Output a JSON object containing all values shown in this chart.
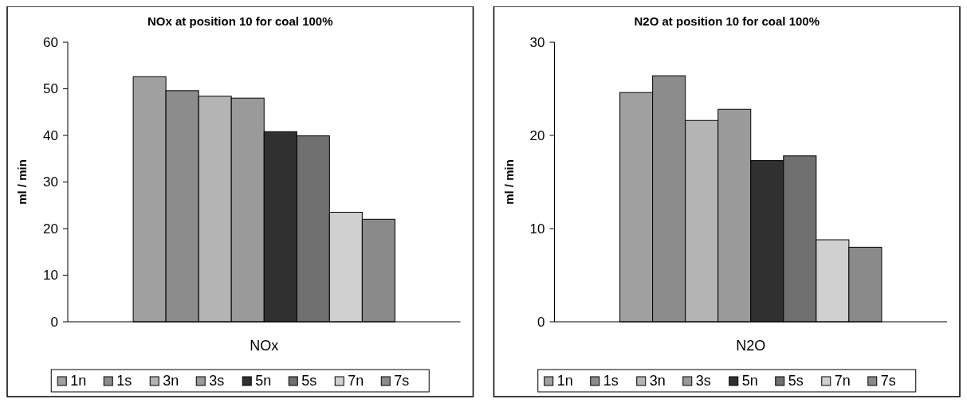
{
  "chart_data": [
    {
      "type": "bar",
      "title": "NOx at position 10 for coal 100%",
      "ylabel": "ml / min",
      "categories": [
        "NOx"
      ],
      "ylim": [
        0,
        60
      ],
      "yticks": [
        0,
        10,
        20,
        30,
        40,
        50,
        60
      ],
      "grid": false,
      "legend": "bottom",
      "series": [
        {
          "name": "1n",
          "color": "#a0a0a0",
          "values": [
            52.6
          ]
        },
        {
          "name": "1s",
          "color": "#8c8c8c",
          "values": [
            49.6
          ]
        },
        {
          "name": "3n",
          "color": "#b4b4b4",
          "values": [
            48.4
          ]
        },
        {
          "name": "3s",
          "color": "#9a9a9a",
          "values": [
            48.0
          ]
        },
        {
          "name": "5n",
          "color": "#303030",
          "values": [
            40.8
          ]
        },
        {
          "name": "5s",
          "color": "#707070",
          "values": [
            39.9
          ]
        },
        {
          "name": "7n",
          "color": "#d0d0d0",
          "values": [
            23.5
          ]
        },
        {
          "name": "7s",
          "color": "#8a8a8a",
          "values": [
            22.0
          ]
        }
      ]
    },
    {
      "type": "bar",
      "title": "N2O at position 10 for coal 100%",
      "ylabel": "ml / min",
      "categories": [
        "N2O"
      ],
      "ylim": [
        0,
        30
      ],
      "yticks": [
        0,
        10,
        20,
        30
      ],
      "grid": false,
      "legend": "bottom",
      "series": [
        {
          "name": "1n",
          "color": "#a0a0a0",
          "values": [
            24.6
          ]
        },
        {
          "name": "1s",
          "color": "#8c8c8c",
          "values": [
            26.4
          ]
        },
        {
          "name": "3n",
          "color": "#b4b4b4",
          "values": [
            21.6
          ]
        },
        {
          "name": "3s",
          "color": "#9a9a9a",
          "values": [
            22.8
          ]
        },
        {
          "name": "5n",
          "color": "#303030",
          "values": [
            17.3
          ]
        },
        {
          "name": "5s",
          "color": "#707070",
          "values": [
            17.8
          ]
        },
        {
          "name": "7n",
          "color": "#d0d0d0",
          "values": [
            8.8
          ]
        },
        {
          "name": "7s",
          "color": "#8a8a8a",
          "values": [
            8.0
          ]
        }
      ]
    }
  ]
}
